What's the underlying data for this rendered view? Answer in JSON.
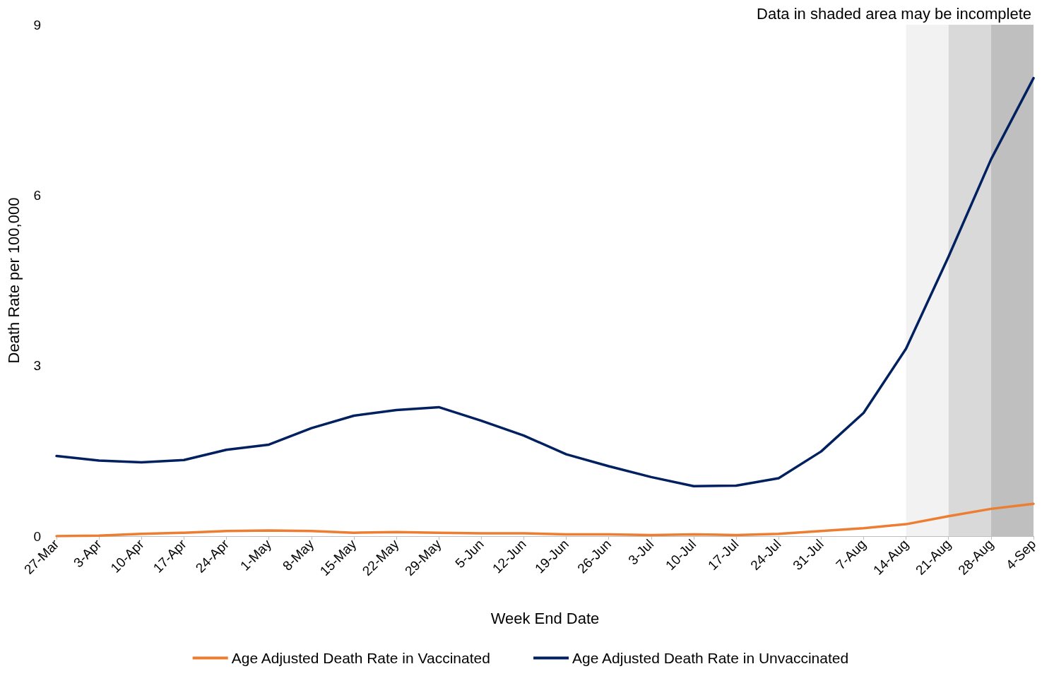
{
  "chart_data": {
    "type": "line",
    "xlabel": "Week End Date",
    "ylabel": "Death Rate per 100,000",
    "categories": [
      "27-Mar",
      "3-Apr",
      "10-Apr",
      "17-Apr",
      "24-Apr",
      "1-May",
      "8-May",
      "15-May",
      "22-May",
      "29-May",
      "5-Jun",
      "12-Jun",
      "19-Jun",
      "26-Jun",
      "3-Jul",
      "10-Jul",
      "17-Jul",
      "24-Jul",
      "31-Jul",
      "7-Aug",
      "14-Aug",
      "21-Aug",
      "28-Aug",
      "4-Sep"
    ],
    "series": [
      {
        "name": "Age Adjusted Death Rate in Vaccinated",
        "color": "#ed7d31",
        "values": [
          0.0,
          0.01,
          0.04,
          0.06,
          0.09,
          0.1,
          0.09,
          0.06,
          0.07,
          0.06,
          0.05,
          0.05,
          0.03,
          0.03,
          0.02,
          0.03,
          0.02,
          0.04,
          0.09,
          0.14,
          0.21,
          0.35,
          0.48,
          0.57
        ]
      },
      {
        "name": "Age Adjusted Death Rate in Unvaccinated",
        "color": "#002060",
        "values": [
          1.41,
          1.33,
          1.3,
          1.34,
          1.52,
          1.61,
          1.9,
          2.12,
          2.22,
          2.27,
          2.03,
          1.77,
          1.44,
          1.23,
          1.04,
          0.88,
          0.89,
          1.02,
          1.49,
          2.17,
          3.3,
          4.92,
          6.63,
          8.06
        ]
      }
    ],
    "ylim": [
      0,
      9
    ],
    "yticks": [
      0,
      3,
      6,
      9
    ],
    "grid": false,
    "legend": "bottom",
    "marker": "none",
    "line_style": "solid",
    "bands": [
      {
        "axis": "x",
        "from": "14-Aug",
        "to": "21-Aug",
        "color": "#f2f2f2"
      },
      {
        "axis": "x",
        "from": "21-Aug",
        "to": "28-Aug",
        "color": "#d9d9d9"
      },
      {
        "axis": "x",
        "from": "28-Aug",
        "to": "4-Sep",
        "color": "#bfbfbf"
      }
    ],
    "annotations": [
      "Data in shaded area may be incomplete"
    ]
  }
}
